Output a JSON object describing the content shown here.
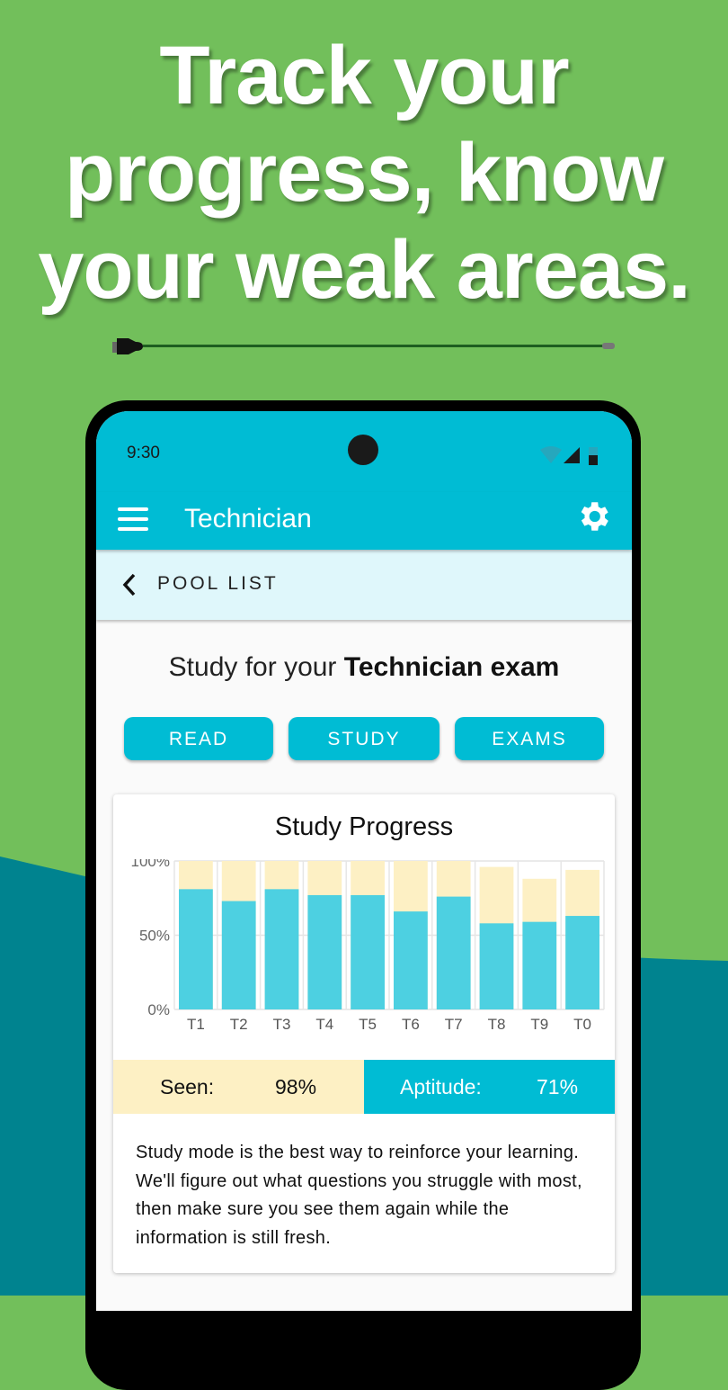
{
  "headline": [
    "Track your",
    "progress, know",
    "your weak areas."
  ],
  "colors": {
    "background": "#72bf5b",
    "wave": "#00838f",
    "accent": "#00bcd4",
    "seen": "#fdf0c4",
    "aptitude_bar": "#4dd0e1"
  },
  "status_bar": {
    "time": "9:30",
    "icons": [
      "wifi-icon",
      "signal-icon",
      "battery-icon"
    ]
  },
  "app_bar": {
    "title": "Technician",
    "menu_icon": "hamburger-menu-icon",
    "settings_icon": "gear-icon"
  },
  "sub_bar": {
    "back_label": "POOL LIST"
  },
  "heading": {
    "prefix": "Study for your ",
    "bold": "Technician exam"
  },
  "buttons": [
    "READ",
    "STUDY",
    "EXAMS"
  ],
  "card": {
    "title": "Study Progress",
    "seen_label": "Seen:",
    "seen_value": "98%",
    "aptitude_label": "Aptitude:",
    "aptitude_value": "71%",
    "description": "Study mode is the best way to reinforce your learning. We'll figure out what questions you struggle with most, then make sure you see them again while the information is still fresh."
  },
  "chart_data": {
    "type": "bar",
    "stacked": "overlay",
    "categories": [
      "T1",
      "T2",
      "T3",
      "T4",
      "T5",
      "T6",
      "T7",
      "T8",
      "T9",
      "T0"
    ],
    "series": [
      {
        "key": "seen",
        "values": [
          100,
          100,
          100,
          100,
          100,
          100,
          100,
          96,
          88,
          94
        ],
        "color": "#fdf0c4"
      },
      {
        "key": "aptitude",
        "values": [
          81,
          73,
          81,
          77,
          77,
          66,
          76,
          58,
          59,
          63
        ],
        "color": "#4dd0e1"
      }
    ],
    "yticks": [
      "0%",
      "50%",
      "100%"
    ],
    "ylim": [
      0,
      100
    ],
    "grid": true
  }
}
